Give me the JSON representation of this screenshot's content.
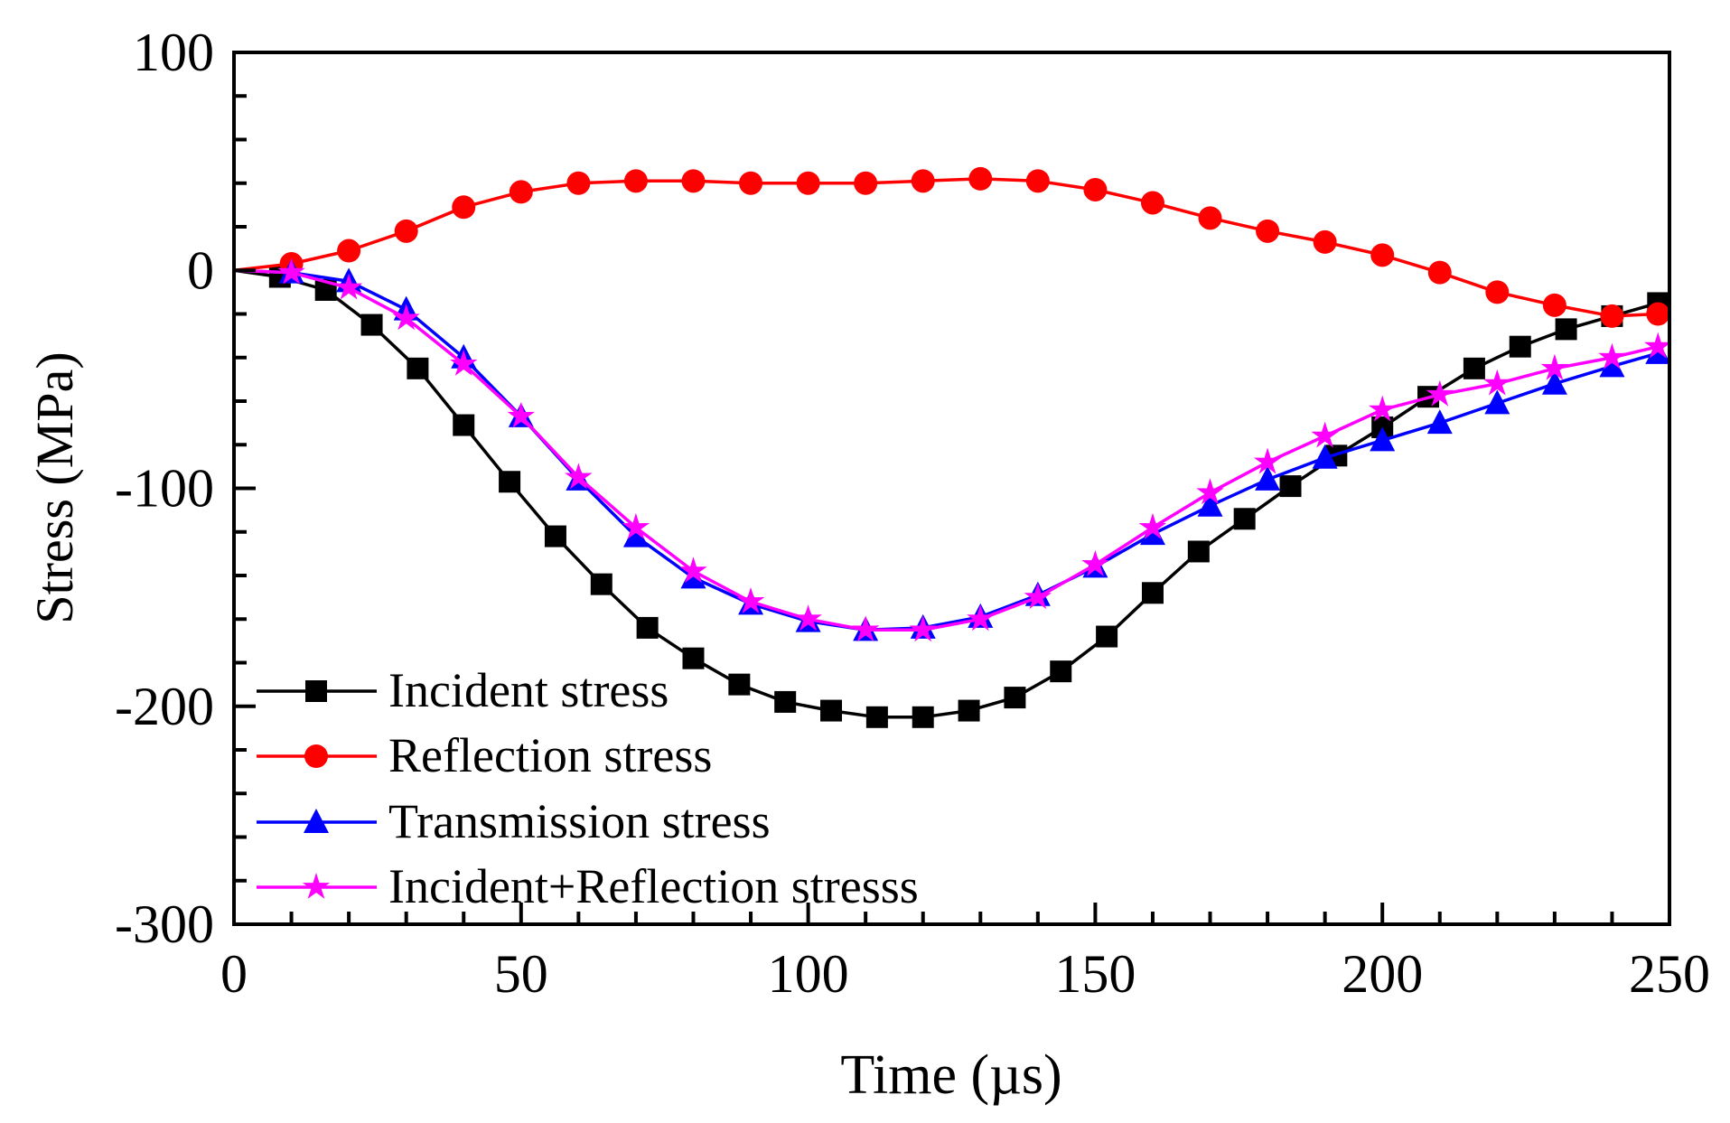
{
  "chart_data": {
    "type": "line",
    "title": "",
    "xlabel": "Time (µs)",
    "ylabel": "Stress (MPa)",
    "xlim": [
      0,
      250
    ],
    "ylim": [
      -300,
      100
    ],
    "xticks": [
      0,
      50,
      100,
      150,
      200,
      250
    ],
    "xtick_labels": [
      "0",
      "50",
      "100",
      "150",
      "200",
      "250"
    ],
    "yticks": [
      100,
      0,
      -100,
      -200,
      -300
    ],
    "ytick_labels": [
      "100",
      "0",
      "-100",
      "-200",
      "-300"
    ],
    "grid": false,
    "legend_position": "bottom-left",
    "series": [
      {
        "name": "Incident stress",
        "color": "#000000",
        "marker": "square",
        "x": [
          0,
          8,
          16,
          24,
          32,
          40,
          48,
          56,
          64,
          72,
          80,
          88,
          96,
          104,
          112,
          120,
          128,
          136,
          144,
          152,
          160,
          168,
          176,
          184,
          192,
          200,
          208,
          216,
          224,
          232,
          240,
          248
        ],
        "y": [
          0,
          -3,
          -9,
          -25,
          -45,
          -71,
          -97,
          -122,
          -144,
          -164,
          -178,
          -190,
          -198,
          -202,
          -205,
          -205,
          -202,
          -196,
          -184,
          -168,
          -148,
          -129,
          -114,
          -99,
          -85,
          -72,
          -58,
          -45,
          -35,
          -27,
          -21,
          -15
        ]
      },
      {
        "name": "Reflection stress",
        "color": "#ff0000",
        "marker": "circle",
        "x": [
          0,
          10,
          20,
          30,
          40,
          50,
          60,
          70,
          80,
          90,
          100,
          110,
          120,
          130,
          140,
          150,
          160,
          170,
          180,
          190,
          200,
          210,
          220,
          230,
          240,
          248
        ],
        "y": [
          0,
          3,
          9,
          18,
          29,
          36,
          40,
          41,
          41,
          40,
          40,
          40,
          41,
          42,
          41,
          37,
          31,
          24,
          18,
          13,
          7,
          -1,
          -10,
          -16,
          -21,
          -20
        ]
      },
      {
        "name": "Transmission stress",
        "color": "#0000ff",
        "marker": "triangle",
        "x": [
          0,
          10,
          20,
          30,
          40,
          50,
          60,
          70,
          80,
          90,
          100,
          110,
          120,
          130,
          140,
          150,
          160,
          170,
          180,
          190,
          200,
          210,
          220,
          230,
          240,
          248
        ],
        "y": [
          0,
          -1,
          -5,
          -18,
          -40,
          -67,
          -96,
          -122,
          -141,
          -153,
          -161,
          -165,
          -164,
          -159,
          -149,
          -136,
          -121,
          -108,
          -96,
          -86,
          -78,
          -70,
          -61,
          -52,
          -44,
          -38
        ]
      },
      {
        "name": "Incident+Reflection stresss",
        "color": "#ff00ff",
        "marker": "star",
        "x": [
          0,
          10,
          20,
          30,
          40,
          50,
          60,
          70,
          80,
          90,
          100,
          110,
          120,
          130,
          140,
          150,
          160,
          170,
          180,
          190,
          200,
          210,
          220,
          230,
          240,
          248
        ],
        "y": [
          0,
          -1,
          -8,
          -22,
          -43,
          -67,
          -95,
          -118,
          -138,
          -152,
          -160,
          -165,
          -165,
          -160,
          -150,
          -135,
          -118,
          -102,
          -88,
          -76,
          -64,
          -57,
          -52,
          -45,
          -40,
          -35
        ]
      }
    ]
  }
}
